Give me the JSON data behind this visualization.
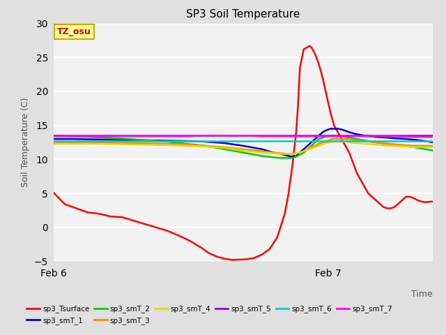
{
  "title": "SP3 Soil Temperature",
  "ylabel": "Soil Temperature (C)",
  "xlabel": "Time",
  "ylim": [
    -5,
    30
  ],
  "annotation_text": "TZ_osu",
  "annotation_color": "#cc0000",
  "annotation_bg": "#ffff99",
  "annotation_border": "#ccaa00",
  "series": {
    "sp3_Tsurface": {
      "color": "#ff0000",
      "points": [
        [
          0.0,
          5.1
        ],
        [
          0.03,
          3.4
        ],
        [
          0.06,
          2.8
        ],
        [
          0.09,
          2.2
        ],
        [
          0.12,
          2.0
        ],
        [
          0.15,
          1.6
        ],
        [
          0.18,
          1.5
        ],
        [
          0.21,
          1.0
        ],
        [
          0.24,
          0.5
        ],
        [
          0.27,
          0.0
        ],
        [
          0.3,
          -0.5
        ],
        [
          0.33,
          -1.2
        ],
        [
          0.36,
          -2.0
        ],
        [
          0.39,
          -3.0
        ],
        [
          0.41,
          -3.8
        ],
        [
          0.43,
          -4.3
        ],
        [
          0.45,
          -4.6
        ],
        [
          0.47,
          -4.8
        ],
        [
          0.49,
          -4.75
        ],
        [
          0.51,
          -4.7
        ],
        [
          0.53,
          -4.5
        ],
        [
          0.55,
          -4.0
        ],
        [
          0.57,
          -3.2
        ],
        [
          0.59,
          -1.5
        ],
        [
          0.61,
          2.0
        ],
        [
          0.62,
          5.0
        ],
        [
          0.63,
          9.0
        ],
        [
          0.64,
          14.0
        ],
        [
          0.645,
          18.0
        ],
        [
          0.65,
          23.5
        ],
        [
          0.66,
          26.2
        ],
        [
          0.67,
          26.5
        ],
        [
          0.675,
          26.7
        ],
        [
          0.68,
          26.5
        ],
        [
          0.685,
          26.0
        ],
        [
          0.69,
          25.5
        ],
        [
          0.7,
          24.0
        ],
        [
          0.71,
          22.0
        ],
        [
          0.72,
          19.5
        ],
        [
          0.73,
          17.0
        ],
        [
          0.74,
          15.0
        ],
        [
          0.75,
          14.0
        ],
        [
          0.76,
          13.0
        ],
        [
          0.77,
          12.0
        ],
        [
          0.78,
          11.0
        ],
        [
          0.79,
          9.5
        ],
        [
          0.8,
          8.0
        ],
        [
          0.81,
          7.0
        ],
        [
          0.82,
          6.0
        ],
        [
          0.83,
          5.0
        ],
        [
          0.84,
          4.5
        ],
        [
          0.85,
          4.0
        ],
        [
          0.86,
          3.5
        ],
        [
          0.87,
          3.0
        ],
        [
          0.88,
          2.8
        ],
        [
          0.89,
          2.8
        ],
        [
          0.9,
          3.0
        ],
        [
          0.91,
          3.5
        ],
        [
          0.92,
          4.0
        ],
        [
          0.93,
          4.5
        ],
        [
          0.94,
          4.5
        ],
        [
          0.95,
          4.3
        ],
        [
          0.96,
          4.0
        ],
        [
          0.97,
          3.8
        ],
        [
          0.98,
          3.7
        ],
        [
          1.0,
          3.8
        ]
      ]
    },
    "sp3_smT_1": {
      "color": "#0000cc",
      "points": [
        [
          0.0,
          13.0
        ],
        [
          0.05,
          13.0
        ],
        [
          0.1,
          12.95
        ],
        [
          0.15,
          12.9
        ],
        [
          0.2,
          12.85
        ],
        [
          0.25,
          12.8
        ],
        [
          0.3,
          12.75
        ],
        [
          0.35,
          12.7
        ],
        [
          0.4,
          12.6
        ],
        [
          0.45,
          12.4
        ],
        [
          0.5,
          12.0
        ],
        [
          0.55,
          11.5
        ],
        [
          0.58,
          11.0
        ],
        [
          0.6,
          10.8
        ],
        [
          0.62,
          10.5
        ],
        [
          0.63,
          10.4
        ],
        [
          0.64,
          10.5
        ],
        [
          0.65,
          11.0
        ],
        [
          0.66,
          11.5
        ],
        [
          0.67,
          12.0
        ],
        [
          0.68,
          12.5
        ],
        [
          0.69,
          13.0
        ],
        [
          0.7,
          13.5
        ],
        [
          0.71,
          14.0
        ],
        [
          0.72,
          14.3
        ],
        [
          0.73,
          14.5
        ],
        [
          0.74,
          14.5
        ],
        [
          0.75,
          14.5
        ],
        [
          0.76,
          14.4
        ],
        [
          0.77,
          14.2
        ],
        [
          0.78,
          14.0
        ],
        [
          0.8,
          13.7
        ],
        [
          0.82,
          13.5
        ],
        [
          0.85,
          13.3
        ],
        [
          0.88,
          13.2
        ],
        [
          0.9,
          13.1
        ],
        [
          0.93,
          13.0
        ],
        [
          0.95,
          12.9
        ],
        [
          0.98,
          12.7
        ],
        [
          1.0,
          12.5
        ]
      ]
    },
    "sp3_smT_2": {
      "color": "#00cc00",
      "points": [
        [
          0.0,
          13.5
        ],
        [
          0.05,
          13.4
        ],
        [
          0.1,
          13.3
        ],
        [
          0.15,
          13.15
        ],
        [
          0.2,
          13.0
        ],
        [
          0.25,
          12.8
        ],
        [
          0.3,
          12.6
        ],
        [
          0.35,
          12.3
        ],
        [
          0.4,
          12.0
        ],
        [
          0.45,
          11.5
        ],
        [
          0.5,
          11.0
        ],
        [
          0.55,
          10.5
        ],
        [
          0.58,
          10.3
        ],
        [
          0.6,
          10.2
        ],
        [
          0.62,
          10.2
        ],
        [
          0.63,
          10.2
        ],
        [
          0.64,
          10.4
        ],
        [
          0.65,
          10.7
        ],
        [
          0.66,
          11.0
        ],
        [
          0.67,
          11.5
        ],
        [
          0.68,
          12.0
        ],
        [
          0.69,
          12.5
        ],
        [
          0.7,
          13.0
        ],
        [
          0.71,
          13.2
        ],
        [
          0.72,
          13.4
        ],
        [
          0.73,
          13.5
        ],
        [
          0.74,
          13.5
        ],
        [
          0.75,
          13.5
        ],
        [
          0.76,
          13.4
        ],
        [
          0.77,
          13.3
        ],
        [
          0.78,
          13.2
        ],
        [
          0.8,
          13.0
        ],
        [
          0.82,
          12.8
        ],
        [
          0.85,
          12.5
        ],
        [
          0.88,
          12.3
        ],
        [
          0.9,
          12.2
        ],
        [
          0.93,
          12.0
        ],
        [
          0.95,
          11.8
        ],
        [
          0.98,
          11.5
        ],
        [
          1.0,
          11.3
        ]
      ]
    },
    "sp3_smT_3": {
      "color": "#ff8800",
      "points": [
        [
          0.0,
          12.5
        ],
        [
          0.05,
          12.5
        ],
        [
          0.1,
          12.5
        ],
        [
          0.15,
          12.45
        ],
        [
          0.2,
          12.4
        ],
        [
          0.25,
          12.35
        ],
        [
          0.3,
          12.3
        ],
        [
          0.35,
          12.2
        ],
        [
          0.4,
          12.0
        ],
        [
          0.45,
          11.8
        ],
        [
          0.5,
          11.5
        ],
        [
          0.55,
          11.2
        ],
        [
          0.58,
          11.0
        ],
        [
          0.6,
          10.9
        ],
        [
          0.62,
          10.8
        ],
        [
          0.63,
          10.8
        ],
        [
          0.64,
          10.9
        ],
        [
          0.65,
          11.0
        ],
        [
          0.66,
          11.2
        ],
        [
          0.67,
          11.5
        ],
        [
          0.68,
          11.8
        ],
        [
          0.69,
          12.0
        ],
        [
          0.7,
          12.3
        ],
        [
          0.71,
          12.5
        ],
        [
          0.72,
          12.7
        ],
        [
          0.73,
          12.9
        ],
        [
          0.74,
          13.0
        ],
        [
          0.75,
          13.0
        ],
        [
          0.76,
          13.0
        ],
        [
          0.77,
          13.0
        ],
        [
          0.78,
          13.0
        ],
        [
          0.8,
          12.8
        ],
        [
          0.82,
          12.7
        ],
        [
          0.85,
          12.5
        ],
        [
          0.88,
          12.3
        ],
        [
          0.9,
          12.2
        ],
        [
          0.93,
          12.1
        ],
        [
          0.95,
          12.0
        ],
        [
          0.98,
          12.0
        ],
        [
          1.0,
          12.0
        ]
      ]
    },
    "sp3_smT_4": {
      "color": "#dddd00",
      "points": [
        [
          0.0,
          12.3
        ],
        [
          0.05,
          12.3
        ],
        [
          0.1,
          12.3
        ],
        [
          0.15,
          12.25
        ],
        [
          0.2,
          12.2
        ],
        [
          0.25,
          12.15
        ],
        [
          0.3,
          12.1
        ],
        [
          0.35,
          12.0
        ],
        [
          0.4,
          11.9
        ],
        [
          0.45,
          11.7
        ],
        [
          0.5,
          11.3
        ],
        [
          0.55,
          11.0
        ],
        [
          0.58,
          10.9
        ],
        [
          0.6,
          10.8
        ],
        [
          0.62,
          10.8
        ],
        [
          0.63,
          10.8
        ],
        [
          0.64,
          10.9
        ],
        [
          0.65,
          11.0
        ],
        [
          0.66,
          11.2
        ],
        [
          0.67,
          11.4
        ],
        [
          0.68,
          11.6
        ],
        [
          0.69,
          11.8
        ],
        [
          0.7,
          12.0
        ],
        [
          0.71,
          12.2
        ],
        [
          0.72,
          12.4
        ],
        [
          0.73,
          12.5
        ],
        [
          0.74,
          12.6
        ],
        [
          0.75,
          12.7
        ],
        [
          0.76,
          12.6
        ],
        [
          0.77,
          12.6
        ],
        [
          0.78,
          12.5
        ],
        [
          0.8,
          12.4
        ],
        [
          0.82,
          12.3
        ],
        [
          0.85,
          12.2
        ],
        [
          0.88,
          12.0
        ],
        [
          0.9,
          12.0
        ],
        [
          0.93,
          11.9
        ],
        [
          0.95,
          11.8
        ],
        [
          0.98,
          11.8
        ],
        [
          1.0,
          11.8
        ]
      ]
    },
    "sp3_smT_5": {
      "color": "#9900cc",
      "points": [
        [
          0.0,
          13.5
        ],
        [
          0.1,
          13.5
        ],
        [
          0.2,
          13.5
        ],
        [
          0.3,
          13.5
        ],
        [
          0.4,
          13.5
        ],
        [
          0.5,
          13.5
        ],
        [
          0.6,
          13.5
        ],
        [
          0.7,
          13.5
        ],
        [
          0.8,
          13.5
        ],
        [
          0.9,
          13.5
        ],
        [
          1.0,
          13.5
        ]
      ]
    },
    "sp3_smT_6": {
      "color": "#00cccc",
      "points": [
        [
          0.0,
          12.7
        ],
        [
          0.1,
          12.7
        ],
        [
          0.2,
          12.7
        ],
        [
          0.3,
          12.7
        ],
        [
          0.4,
          12.7
        ],
        [
          0.5,
          12.7
        ],
        [
          0.6,
          12.7
        ],
        [
          0.7,
          12.7
        ],
        [
          0.8,
          12.7
        ],
        [
          0.9,
          12.7
        ],
        [
          1.0,
          12.7
        ]
      ]
    },
    "sp3_smT_7": {
      "color": "#ff00ff",
      "points": [
        [
          0.0,
          13.4
        ],
        [
          0.05,
          13.4
        ],
        [
          0.1,
          13.4
        ],
        [
          0.15,
          13.4
        ],
        [
          0.2,
          13.4
        ],
        [
          0.25,
          13.4
        ],
        [
          0.3,
          13.4
        ],
        [
          0.35,
          13.4
        ],
        [
          0.4,
          13.5
        ],
        [
          0.45,
          13.5
        ],
        [
          0.5,
          13.5
        ],
        [
          0.55,
          13.4
        ],
        [
          0.6,
          13.4
        ],
        [
          0.65,
          13.4
        ],
        [
          0.7,
          13.4
        ],
        [
          0.75,
          13.4
        ],
        [
          0.8,
          13.4
        ],
        [
          0.85,
          13.4
        ],
        [
          0.9,
          13.4
        ],
        [
          0.95,
          13.3
        ],
        [
          1.0,
          13.3
        ]
      ]
    }
  },
  "xticks": [
    0.0,
    0.725
  ],
  "xtick_labels": [
    "Feb 6",
    "Feb 7"
  ],
  "background_color": "#e0e0e0",
  "plot_bg_color": "#f2f2f2",
  "grid_color": "#ffffff",
  "yticks": [
    -5,
    0,
    5,
    10,
    15,
    20,
    25,
    30
  ]
}
